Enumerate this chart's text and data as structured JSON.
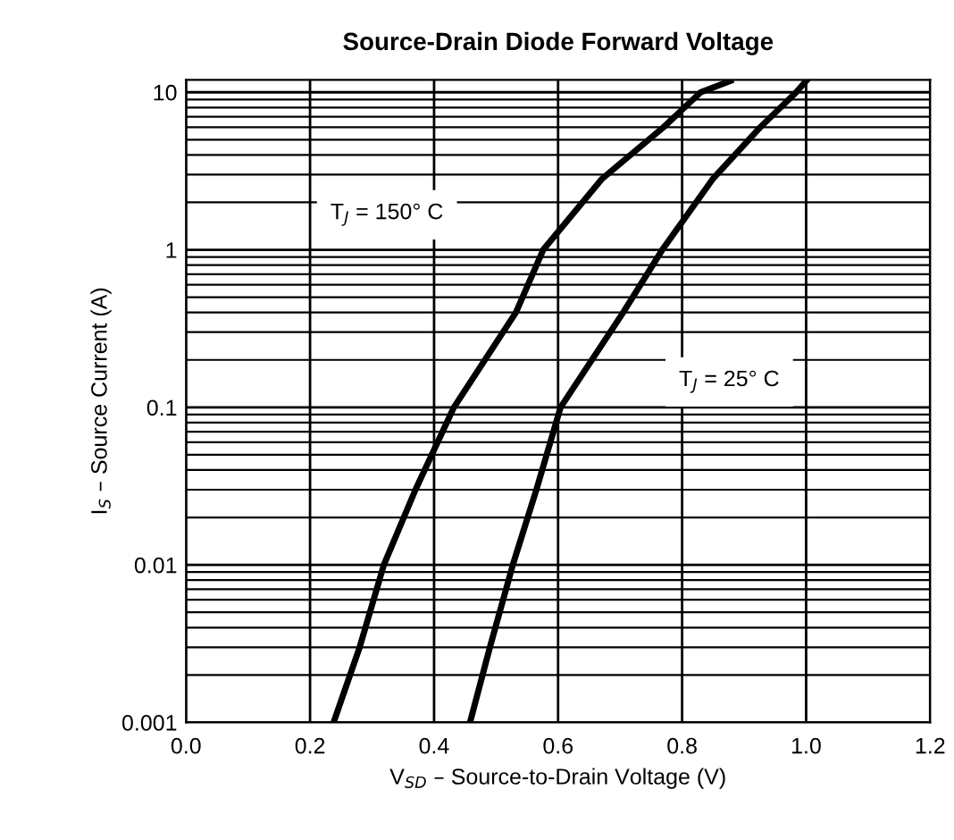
{
  "chart_data": {
    "type": "line",
    "title": "Source-Drain Diode Forward Voltage",
    "xlabel": "V$_{SD}$ – Source-to-Drain Voltage (V)",
    "ylabel": "I$_{S}$ – Source Current (A)",
    "series": [
      {
        "color": "#000000",
        "x": [
          0.238,
          0.28,
          0.319,
          0.37,
          0.432,
          0.532,
          0.576,
          0.67,
          0.77,
          0.83,
          0.878
        ],
        "values": [
          0.001,
          0.003,
          0.01,
          0.03,
          0.1,
          0.4,
          1,
          2.8,
          6,
          10,
          11.8
        ]
      },
      {
        "color": "#000000",
        "x": [
          0.458,
          0.49,
          0.527,
          0.565,
          0.604,
          0.705,
          0.768,
          0.849,
          0.926,
          0.984,
          1.0
        ],
        "values": [
          0.001,
          0.003,
          0.01,
          0.03,
          0.1,
          0.4,
          1,
          2.8,
          6,
          10,
          11.8
        ]
      }
    ],
    "annotations": [
      "T$_{J}$ = 150° C",
      "T$_{J}$ = 25° C"
    ],
    "log": "y",
    "grid": true,
    "xlim": [
      0,
      1.2
    ],
    "xticks": [
      {
        "value": 0,
        "label": "0.0"
      },
      0.2,
      0.4,
      0.6,
      0.8,
      {
        "value": 1,
        "label": "1.0"
      },
      1.2
    ],
    "ylim": [
      0.001,
      12
    ],
    "yticks": [
      0.001,
      0.01,
      0.1,
      1,
      10
    ]
  }
}
